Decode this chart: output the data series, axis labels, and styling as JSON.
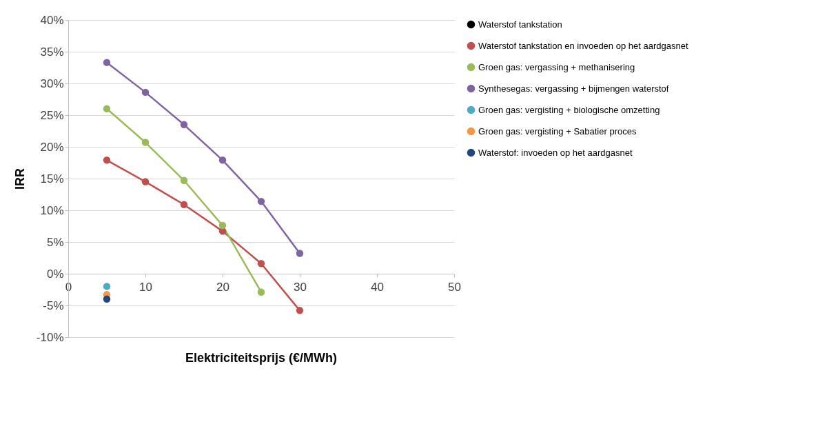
{
  "chart_data": {
    "type": "line",
    "xlabel": "Elektriciteitsprijs (€/MWh)",
    "ylabel": "IRR",
    "xlim": [
      0,
      50
    ],
    "xticks": [
      0,
      10,
      20,
      30,
      40,
      50
    ],
    "ylim": [
      -10,
      40
    ],
    "yticks": [
      {
        "value": -10,
        "label": "-10%"
      },
      {
        "value": -5,
        "label": "-5%"
      },
      {
        "value": 0,
        "label": "0%"
      },
      {
        "value": 5,
        "label": "5%"
      },
      {
        "value": 10,
        "label": "10%"
      },
      {
        "value": 15,
        "label": "15%"
      },
      {
        "value": 20,
        "label": "20%"
      },
      {
        "value": 25,
        "label": "25%"
      },
      {
        "value": 30,
        "label": "30%"
      },
      {
        "value": 35,
        "label": "35%"
      },
      {
        "value": 40,
        "label": "40%"
      }
    ],
    "grid": "y",
    "legend": "right",
    "marker": "circle",
    "line_style": "solid",
    "series": [
      {
        "name": "Waterstof tankstation",
        "color": "#000000"
      },
      {
        "name": "Waterstof tankstation en invoeden op het aardgasnet",
        "color": "#c0504d",
        "x": [
          5,
          10,
          15,
          20,
          25,
          30
        ],
        "values": [
          17.9,
          14.5,
          10.9,
          6.7,
          1.6,
          -5.8
        ]
      },
      {
        "name": "Groen gas: vergassing + methanisering",
        "color": "#9bbb59",
        "x": [
          5,
          10,
          15,
          20,
          25
        ],
        "values": [
          26.0,
          20.7,
          14.7,
          7.6,
          -2.9
        ]
      },
      {
        "name": "Synthesegas: vergassing + bijmengen waterstof",
        "color": "#8064a2",
        "x": [
          5,
          10,
          15,
          20,
          25,
          30
        ],
        "values": [
          33.3,
          28.6,
          23.5,
          17.9,
          11.4,
          3.2
        ]
      },
      {
        "name": "Groen gas: vergisting + biologische omzetting",
        "color": "#4bacc6",
        "x": [
          5
        ],
        "values": [
          -2.0
        ]
      },
      {
        "name": "Groen gas: vergisting + Sabatier proces",
        "color": "#f79646",
        "x": [
          5
        ],
        "values": [
          -3.3
        ]
      },
      {
        "name": "Waterstof: invoeden op het aardgasnet",
        "color": "#1f497d",
        "x": [
          5
        ],
        "values": [
          -4.0
        ]
      }
    ]
  }
}
